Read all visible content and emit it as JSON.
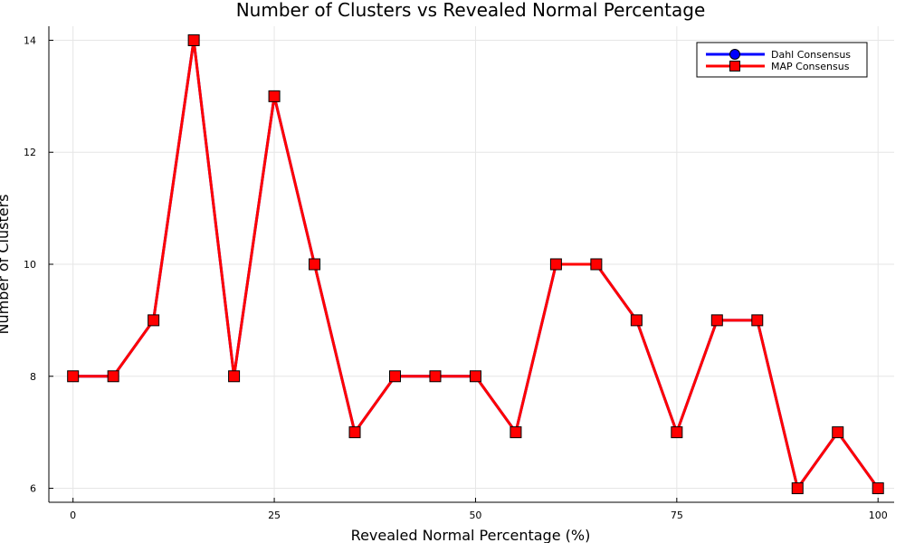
{
  "chart_data": {
    "type": "line",
    "title": "Number of Clusters vs Revealed Normal Percentage",
    "xlabel": "Revealed Normal Percentage (%)",
    "ylabel": "Number of Clusters",
    "xlim": [
      -3,
      102
    ],
    "ylim": [
      5.75,
      14.25
    ],
    "xticks": [
      0,
      25,
      50,
      75,
      100
    ],
    "yticks": [
      6,
      8,
      10,
      12,
      14
    ],
    "grid": true,
    "legend_position": "top-right",
    "x": [
      0,
      5,
      10,
      15,
      20,
      25,
      30,
      35,
      40,
      45,
      50,
      55,
      60,
      65,
      70,
      75,
      80,
      85,
      90,
      95,
      100
    ],
    "series": [
      {
        "name": "Dahl Consensus",
        "color": "#0000ff",
        "marker": "circle",
        "values": [
          8,
          8,
          9,
          14,
          8,
          13,
          10,
          7,
          8,
          8,
          8,
          7,
          10,
          10,
          9,
          7,
          9,
          9,
          6,
          7,
          6
        ]
      },
      {
        "name": "MAP Consensus",
        "color": "#ff0000",
        "marker": "square",
        "values": [
          8,
          8,
          9,
          14,
          8,
          13,
          10,
          7,
          8,
          8,
          8,
          7,
          10,
          10,
          9,
          7,
          9,
          9,
          6,
          7,
          6
        ]
      }
    ]
  }
}
